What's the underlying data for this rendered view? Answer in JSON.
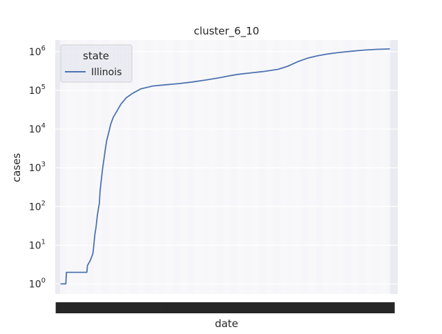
{
  "chart_data": {
    "type": "line",
    "title": "cluster_6_10",
    "xlabel": "date",
    "ylabel": "cases",
    "yscale": "log",
    "ylim": [
      0.55,
      2000000
    ],
    "yticks": [
      1,
      10,
      100,
      1000,
      10000,
      100000,
      1000000
    ],
    "ytick_labels": [
      {
        "base": "10",
        "exp": "0"
      },
      {
        "base": "10",
        "exp": "1"
      },
      {
        "base": "10",
        "exp": "2"
      },
      {
        "base": "10",
        "exp": "3"
      },
      {
        "base": "10",
        "exp": "4"
      },
      {
        "base": "10",
        "exp": "5"
      },
      {
        "base": "10",
        "exp": "6"
      }
    ],
    "grid": true,
    "background": "#eaeaf2",
    "legend": {
      "title": "state",
      "placement": "top-left"
    },
    "series": [
      {
        "name": "Illinois",
        "color": "#4c72b0",
        "points": [
          [
            0,
            1
          ],
          [
            8,
            1
          ],
          [
            9,
            2
          ],
          [
            40,
            2
          ],
          [
            41,
            3
          ],
          [
            45,
            4
          ],
          [
            49,
            6
          ],
          [
            50,
            8
          ],
          [
            52,
            18
          ],
          [
            54,
            30
          ],
          [
            56,
            60
          ],
          [
            58,
            100
          ],
          [
            59,
            120
          ],
          [
            60,
            250
          ],
          [
            62,
            500
          ],
          [
            64,
            1000
          ],
          [
            66,
            1700
          ],
          [
            68,
            3000
          ],
          [
            70,
            5000
          ],
          [
            73,
            8000
          ],
          [
            76,
            13000
          ],
          [
            80,
            20000
          ],
          [
            86,
            30000
          ],
          [
            92,
            45000
          ],
          [
            100,
            65000
          ],
          [
            110,
            85000
          ],
          [
            122,
            110000
          ],
          [
            140,
            130000
          ],
          [
            160,
            140000
          ],
          [
            180,
            150000
          ],
          [
            200,
            165000
          ],
          [
            220,
            185000
          ],
          [
            240,
            210000
          ],
          [
            257,
            240000
          ],
          [
            270,
            260000
          ],
          [
            290,
            285000
          ],
          [
            310,
            310000
          ],
          [
            330,
            350000
          ],
          [
            345,
            420000
          ],
          [
            360,
            550000
          ],
          [
            375,
            680000
          ],
          [
            390,
            780000
          ],
          [
            405,
            870000
          ],
          [
            420,
            940000
          ],
          [
            440,
            1020000
          ],
          [
            460,
            1100000
          ],
          [
            480,
            1150000
          ],
          [
            500,
            1180000
          ]
        ]
      }
    ]
  }
}
